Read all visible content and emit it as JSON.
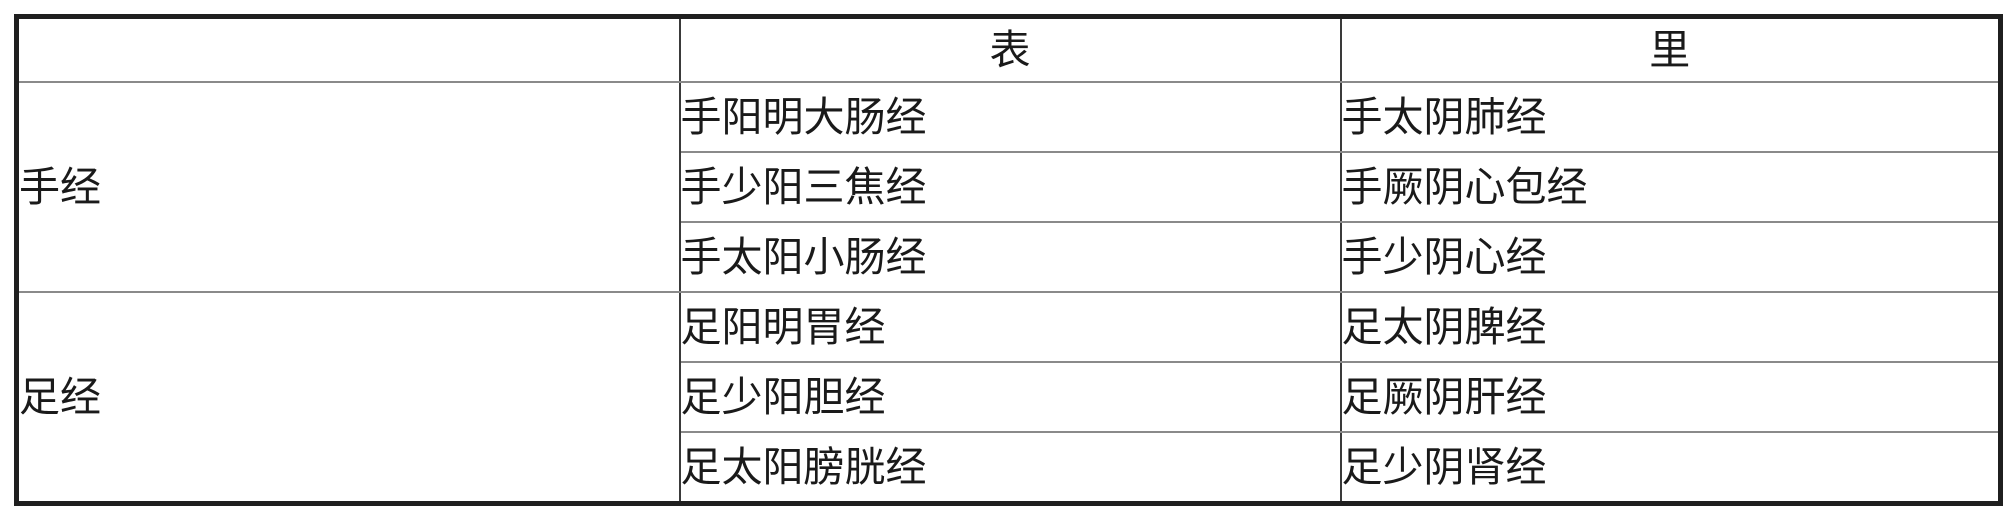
{
  "table": {
    "description": "Table of the twelve regular meridians grouped by hand and foot, paired exterior-interior",
    "header": {
      "col1": "",
      "col2": "表",
      "col3": "里"
    },
    "groups": [
      {
        "label": "手经",
        "rows": [
          {
            "biao": "手阳明大肠经",
            "li": "手太阴肺经"
          },
          {
            "biao": "手少阳三焦经",
            "li": "手厥阴心包经"
          },
          {
            "biao": "手太阳小肠经",
            "li": "手少阴心经"
          }
        ]
      },
      {
        "label": "足经",
        "rows": [
          {
            "biao": "足阳明胃经",
            "li": "足太阴脾经"
          },
          {
            "biao": "足少阳胆经",
            "li": "足厥阴肝经"
          },
          {
            "biao": "足太阳膀胱经",
            "li": "足少阴肾经"
          }
        ]
      }
    ],
    "colors": {
      "outer_border": "#1f1f1f",
      "inner_row_line": "#8a8a8a",
      "column_line": "#3a3a3a",
      "section_line": "#333333",
      "text": "#1a1a1a",
      "background": "#ffffff"
    }
  }
}
